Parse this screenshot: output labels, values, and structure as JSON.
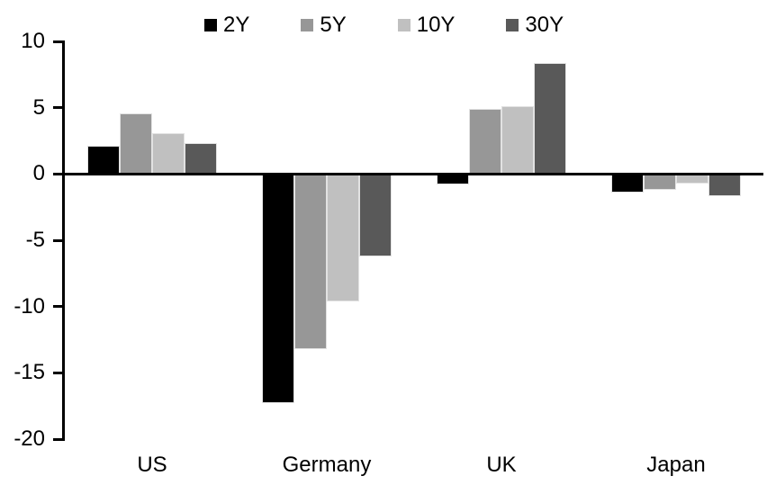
{
  "chart_data": {
    "type": "bar",
    "title": "",
    "xlabel": "",
    "ylabel": "",
    "categories": [
      "US",
      "Germany",
      "UK",
      "Japan"
    ],
    "series": [
      {
        "name": "2Y",
        "color": "#000000",
        "values": [
          2.1,
          -17.3,
          -0.8,
          -1.4
        ]
      },
      {
        "name": "5Y",
        "color": "#979797",
        "values": [
          4.6,
          -13.2,
          4.9,
          -1.2
        ]
      },
      {
        "name": "10Y",
        "color": "#c0c0c0",
        "values": [
          3.1,
          -9.6,
          5.1,
          -0.7
        ]
      },
      {
        "name": "30Y",
        "color": "#595959",
        "values": [
          2.3,
          -6.2,
          8.4,
          -1.7
        ]
      }
    ],
    "ylim": [
      -20,
      10
    ],
    "yticks": [
      10,
      5,
      0,
      -5,
      -10,
      -15,
      -20
    ],
    "legend_position": "top",
    "grid": false,
    "axis_color": "#000000",
    "background_color": "#ffffff"
  }
}
